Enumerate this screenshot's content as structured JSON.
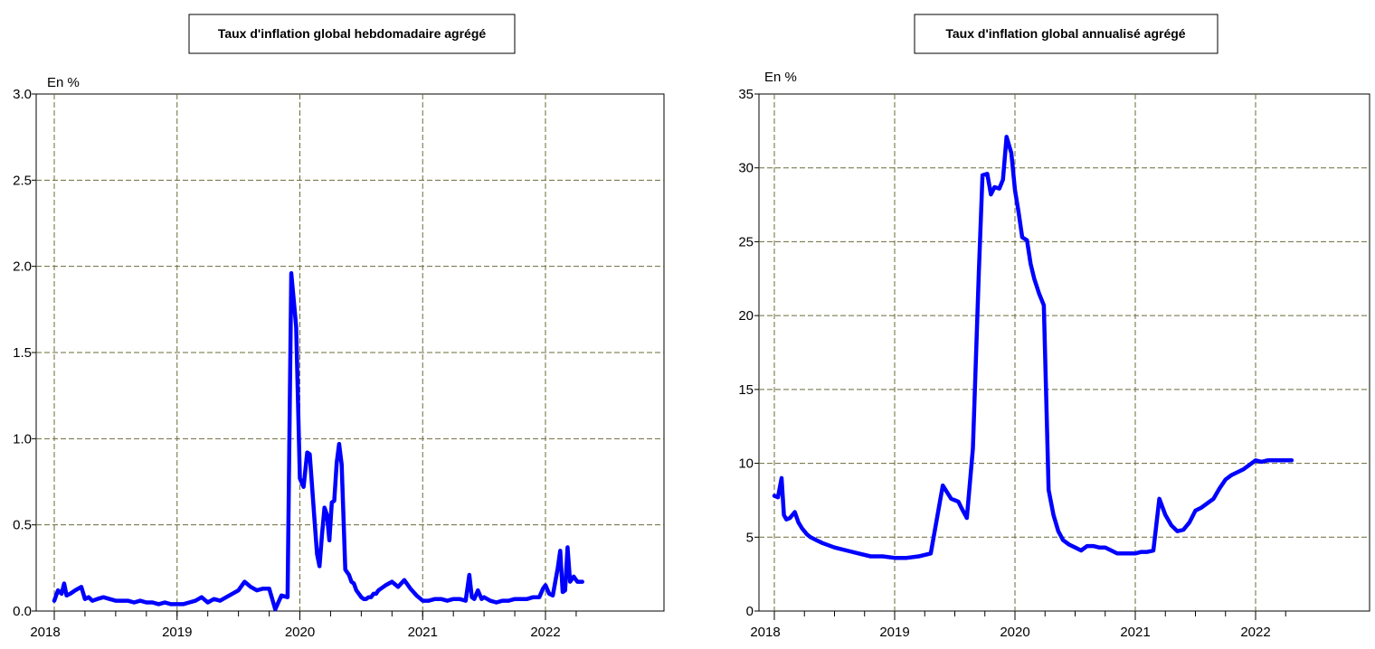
{
  "chart_data": [
    {
      "type": "line",
      "title": "Taux d'inflation global hebdomadaire agrégé",
      "ylabel": "En %",
      "ylim": [
        0,
        3.0
      ],
      "yticks": [
        "0.0",
        "0.5",
        "1.0",
        "1.5",
        "2.0",
        "2.5",
        "3.0"
      ],
      "xlim": [
        2018.0,
        2022.3
      ],
      "xticks": [
        "2018",
        "2019",
        "2020",
        "2021",
        "2022"
      ],
      "grid": true,
      "series": [
        {
          "color": "#0000ff",
          "x": [
            2018.0,
            2018.03,
            2018.06,
            2018.08,
            2018.1,
            2018.13,
            2018.17,
            2018.22,
            2018.25,
            2018.28,
            2018.31,
            2018.35,
            2018.4,
            2018.45,
            2018.5,
            2018.55,
            2018.6,
            2018.65,
            2018.7,
            2018.75,
            2018.8,
            2018.85,
            2018.9,
            2018.95,
            2019.0,
            2019.05,
            2019.1,
            2019.15,
            2019.2,
            2019.25,
            2019.3,
            2019.35,
            2019.4,
            2019.45,
            2019.5,
            2019.55,
            2019.6,
            2019.65,
            2019.7,
            2019.75,
            2019.8,
            2019.85,
            2019.9,
            2019.93,
            2019.97,
            2020.0,
            2020.03,
            2020.06,
            2020.08,
            2020.12,
            2020.14,
            2020.16,
            2020.18,
            2020.2,
            2020.22,
            2020.24,
            2020.26,
            2020.28,
            2020.3,
            2020.32,
            2020.34,
            2020.37,
            2020.4,
            2020.42,
            2020.44,
            2020.46,
            2020.48,
            2020.5,
            2020.52,
            2020.54,
            2020.56,
            2020.58,
            2020.6,
            2020.62,
            2020.64,
            2020.66,
            2020.7,
            2020.75,
            2020.8,
            2020.85,
            2020.9,
            2020.95,
            2021.0,
            2021.05,
            2021.1,
            2021.15,
            2021.2,
            2021.25,
            2021.3,
            2021.35,
            2021.38,
            2021.4,
            2021.42,
            2021.45,
            2021.48,
            2021.5,
            2021.55,
            2021.6,
            2021.65,
            2021.7,
            2021.75,
            2021.8,
            2021.85,
            2021.9,
            2021.95,
            2021.98,
            2022.0,
            2022.03,
            2022.06,
            2022.1,
            2022.12,
            2022.14,
            2022.16,
            2022.18,
            2022.2,
            2022.23,
            2022.26,
            2022.3
          ],
          "values": [
            0.06,
            0.12,
            0.1,
            0.16,
            0.09,
            0.1,
            0.12,
            0.14,
            0.07,
            0.08,
            0.06,
            0.07,
            0.08,
            0.07,
            0.06,
            0.06,
            0.06,
            0.05,
            0.06,
            0.05,
            0.05,
            0.04,
            0.05,
            0.04,
            0.04,
            0.04,
            0.05,
            0.06,
            0.08,
            0.05,
            0.07,
            0.06,
            0.08,
            0.1,
            0.12,
            0.17,
            0.14,
            0.12,
            0.13,
            0.13,
            0.01,
            0.09,
            0.08,
            1.96,
            1.65,
            0.77,
            0.72,
            0.92,
            0.91,
            0.52,
            0.33,
            0.26,
            0.44,
            0.6,
            0.56,
            0.41,
            0.63,
            0.64,
            0.86,
            0.97,
            0.85,
            0.24,
            0.21,
            0.17,
            0.16,
            0.12,
            0.1,
            0.08,
            0.07,
            0.07,
            0.08,
            0.08,
            0.1,
            0.1,
            0.12,
            0.13,
            0.15,
            0.17,
            0.14,
            0.18,
            0.13,
            0.09,
            0.06,
            0.06,
            0.07,
            0.07,
            0.06,
            0.07,
            0.07,
            0.06,
            0.21,
            0.08,
            0.07,
            0.12,
            0.07,
            0.08,
            0.06,
            0.05,
            0.06,
            0.06,
            0.07,
            0.07,
            0.07,
            0.08,
            0.08,
            0.13,
            0.15,
            0.1,
            0.09,
            0.25,
            0.35,
            0.11,
            0.12,
            0.37,
            0.17,
            0.2,
            0.17,
            0.17
          ]
        }
      ]
    },
    {
      "type": "line",
      "title": "Taux d'inflation global annualisé agrégé",
      "ylabel": "En %",
      "ylim": [
        0,
        35
      ],
      "yticks": [
        "0",
        "5",
        "10",
        "15",
        "20",
        "25",
        "30",
        "35"
      ],
      "xlim": [
        2018.0,
        2022.3
      ],
      "xticks": [
        "2018",
        "2019",
        "2020",
        "2021",
        "2022"
      ],
      "grid": true,
      "series": [
        {
          "color": "#0000ff",
          "x": [
            2018.0,
            2018.03,
            2018.06,
            2018.08,
            2018.1,
            2018.13,
            2018.17,
            2018.2,
            2018.23,
            2018.27,
            2018.3,
            2018.35,
            2018.4,
            2018.5,
            2018.6,
            2018.7,
            2018.8,
            2018.9,
            2019.0,
            2019.1,
            2019.2,
            2019.3,
            2019.4,
            2019.47,
            2019.5,
            2019.53,
            2019.56,
            2019.6,
            2019.65,
            2019.7,
            2019.73,
            2019.77,
            2019.8,
            2019.83,
            2019.87,
            2019.9,
            2019.93,
            2019.97,
            2020.0,
            2020.03,
            2020.06,
            2020.1,
            2020.13,
            2020.16,
            2020.2,
            2020.24,
            2020.28,
            2020.32,
            2020.36,
            2020.4,
            2020.45,
            2020.5,
            2020.55,
            2020.6,
            2020.65,
            2020.7,
            2020.75,
            2020.8,
            2020.85,
            2020.9,
            2020.95,
            2021.0,
            2021.05,
            2021.1,
            2021.15,
            2021.2,
            2021.25,
            2021.3,
            2021.35,
            2021.4,
            2021.45,
            2021.5,
            2021.55,
            2021.6,
            2021.65,
            2021.7,
            2021.75,
            2021.8,
            2021.85,
            2021.9,
            2021.95,
            2022.0,
            2022.05,
            2022.1,
            2022.15,
            2022.2,
            2022.25,
            2022.3
          ],
          "values": [
            7.8,
            7.7,
            9.0,
            6.5,
            6.2,
            6.3,
            6.7,
            6.0,
            5.6,
            5.2,
            5.0,
            4.8,
            4.6,
            4.3,
            4.1,
            3.9,
            3.7,
            3.7,
            3.6,
            3.6,
            3.7,
            3.9,
            8.5,
            7.6,
            7.5,
            7.4,
            6.9,
            6.3,
            11.0,
            23.0,
            29.5,
            29.6,
            28.2,
            28.7,
            28.6,
            29.2,
            32.1,
            31.0,
            28.5,
            27.0,
            25.3,
            25.1,
            23.5,
            22.5,
            21.5,
            20.7,
            8.2,
            6.5,
            5.4,
            4.8,
            4.5,
            4.3,
            4.1,
            4.4,
            4.4,
            4.3,
            4.3,
            4.1,
            3.9,
            3.9,
            3.9,
            3.9,
            4.0,
            4.0,
            4.1,
            7.6,
            6.5,
            5.8,
            5.4,
            5.5,
            6.0,
            6.8,
            7.0,
            7.3,
            7.6,
            8.3,
            8.9,
            9.2,
            9.4,
            9.6,
            9.9,
            10.2,
            10.1,
            10.2,
            10.2,
            10.2,
            10.2,
            10.2
          ]
        }
      ]
    }
  ]
}
